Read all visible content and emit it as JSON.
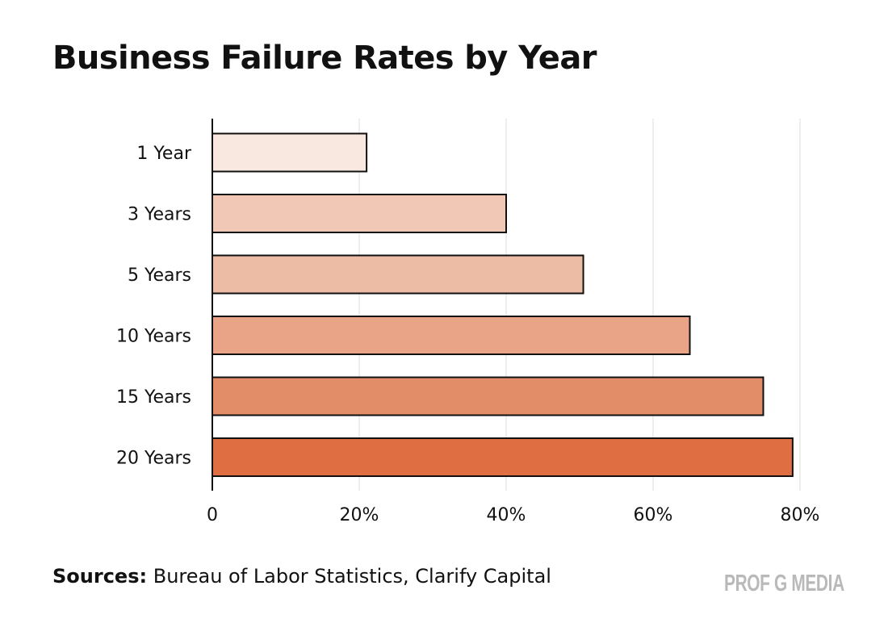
{
  "chart_data": {
    "type": "bar",
    "orientation": "horizontal",
    "title": "Business Failure Rates by Year",
    "categories": [
      "1 Year",
      "3 Years",
      "5 Years",
      "10 Years",
      "15 Years",
      "20 Years"
    ],
    "values": [
      21,
      40,
      50.5,
      65,
      75,
      79
    ],
    "unit": "%",
    "xlim": [
      0,
      80
    ],
    "x_ticks": [
      0,
      20,
      40,
      60,
      80
    ],
    "x_tick_labels": [
      "0",
      "20%",
      "40%",
      "60%",
      "80%"
    ],
    "xlabel": "",
    "ylabel": "",
    "grid": "vertical",
    "colors": [
      "#f8e8e0",
      "#f1c8b5",
      "#edbca4",
      "#e9a487",
      "#e38c68",
      "#df6e42"
    ]
  },
  "footer": {
    "sources_label": "Sources:",
    "sources_text": " Bureau of Labor Statistics, Clarify Capital"
  },
  "brand": "PROF G MEDIA"
}
